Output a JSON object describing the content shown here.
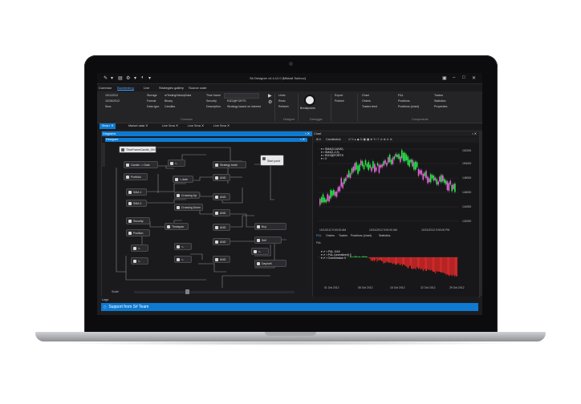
{
  "window": {
    "title": "S# Designer v4.4.12.0 [Mikhail Sukhov]"
  },
  "menu": [
    "Common",
    "Backtesting",
    "Live",
    "Strategies gallery",
    "Source code"
  ],
  "ribbon": {
    "fields": [
      {
        "label": "Storage",
        "value": "mTestingHistoryData"
      },
      {
        "label": "Format",
        "value": "Binary"
      },
      {
        "label": "Data type",
        "value": "Candles"
      }
    ],
    "dates": [
      "10/1/2012",
      "10/26/2012"
    ],
    "right_fields": [
      {
        "label": "Time frame",
        "value": ""
      },
      {
        "label": "Security",
        "value": "RIZ2@FORTS"
      },
      {
        "label": "Description",
        "value": "Strategy based on interest"
      }
    ],
    "play_labels": [
      "Undo",
      "Redo",
      "Refresh"
    ],
    "breakpoints": "Breakpoints",
    "exports": [
      "Export",
      "Publish"
    ],
    "components": [
      "Chart",
      "Orders",
      "Trades feed",
      "P&L",
      "Positions",
      "Positions (chart)",
      "Trades",
      "Statistics",
      "Properties"
    ],
    "groups": [
      "Common",
      "Designer",
      "Debugger",
      "Components"
    ]
  },
  "tabs": [
    "Sma",
    "Market data",
    "Live Sma",
    "Live Sma",
    "Live Sma"
  ],
  "designer": {
    "panel_title": "Diagrams",
    "sub_title": "Designer",
    "scale_label": "Scale",
    "nodes": [
      "TimeFrameCandle_00:05:00",
      "Candle -> Date",
      "Portfolio",
      "SMA 1",
      "SMA 2",
      "Start point",
      "Strategy trade",
      "Security",
      "Position",
      "Crossing Up",
      "Crossing Down",
      "Timespan",
      "Buy",
      "Sell",
      "Day/sell",
      "AND",
      "AND",
      "AND",
      "AND",
      "AND",
      "AND",
      "<-date",
      "<-",
      "<-",
      "<-",
      "<-",
      "<-",
      "<-"
    ]
  },
  "chart": {
    "panel_title": "Chart",
    "tool_label": "Candlestick",
    "legend": [
      "SMA(0.14/0/0)",
      "SMA(1,2,3)",
      "RIZ2@FORTS",
      "X"
    ],
    "y_ticks": [
      "152000",
      "150000",
      "148000",
      "146000",
      "144000",
      "142000"
    ],
    "x_ticks": [
      "10/1/2012 9:00:00 AM",
      "10/11/2012 9:00:00 AM",
      "10/21/2012 9:00:00 PM"
    ],
    "bottom_tabs": [
      "P&L",
      "Orders",
      "Trades",
      "Positions (chart)",
      "Statistics"
    ],
    "pnl_title": "P&L",
    "pnl_legend": [
      "P&L 1116",
      "P&L (unrealized) 0",
      "Commission 0"
    ],
    "pnl_x_ticks": [
      "01 Oct 2012",
      "08 Oct 2012",
      "15 Oct 2012",
      "22 Oct 2012",
      "29 Oct 2012"
    ]
  },
  "logs": "Logs",
  "support": "Support from S# Team",
  "colors": {
    "accent": "#0e7ad1",
    "bull": "#2ce24a",
    "bear": "#e565d8",
    "pnl_neg": "#ff2c2c"
  }
}
